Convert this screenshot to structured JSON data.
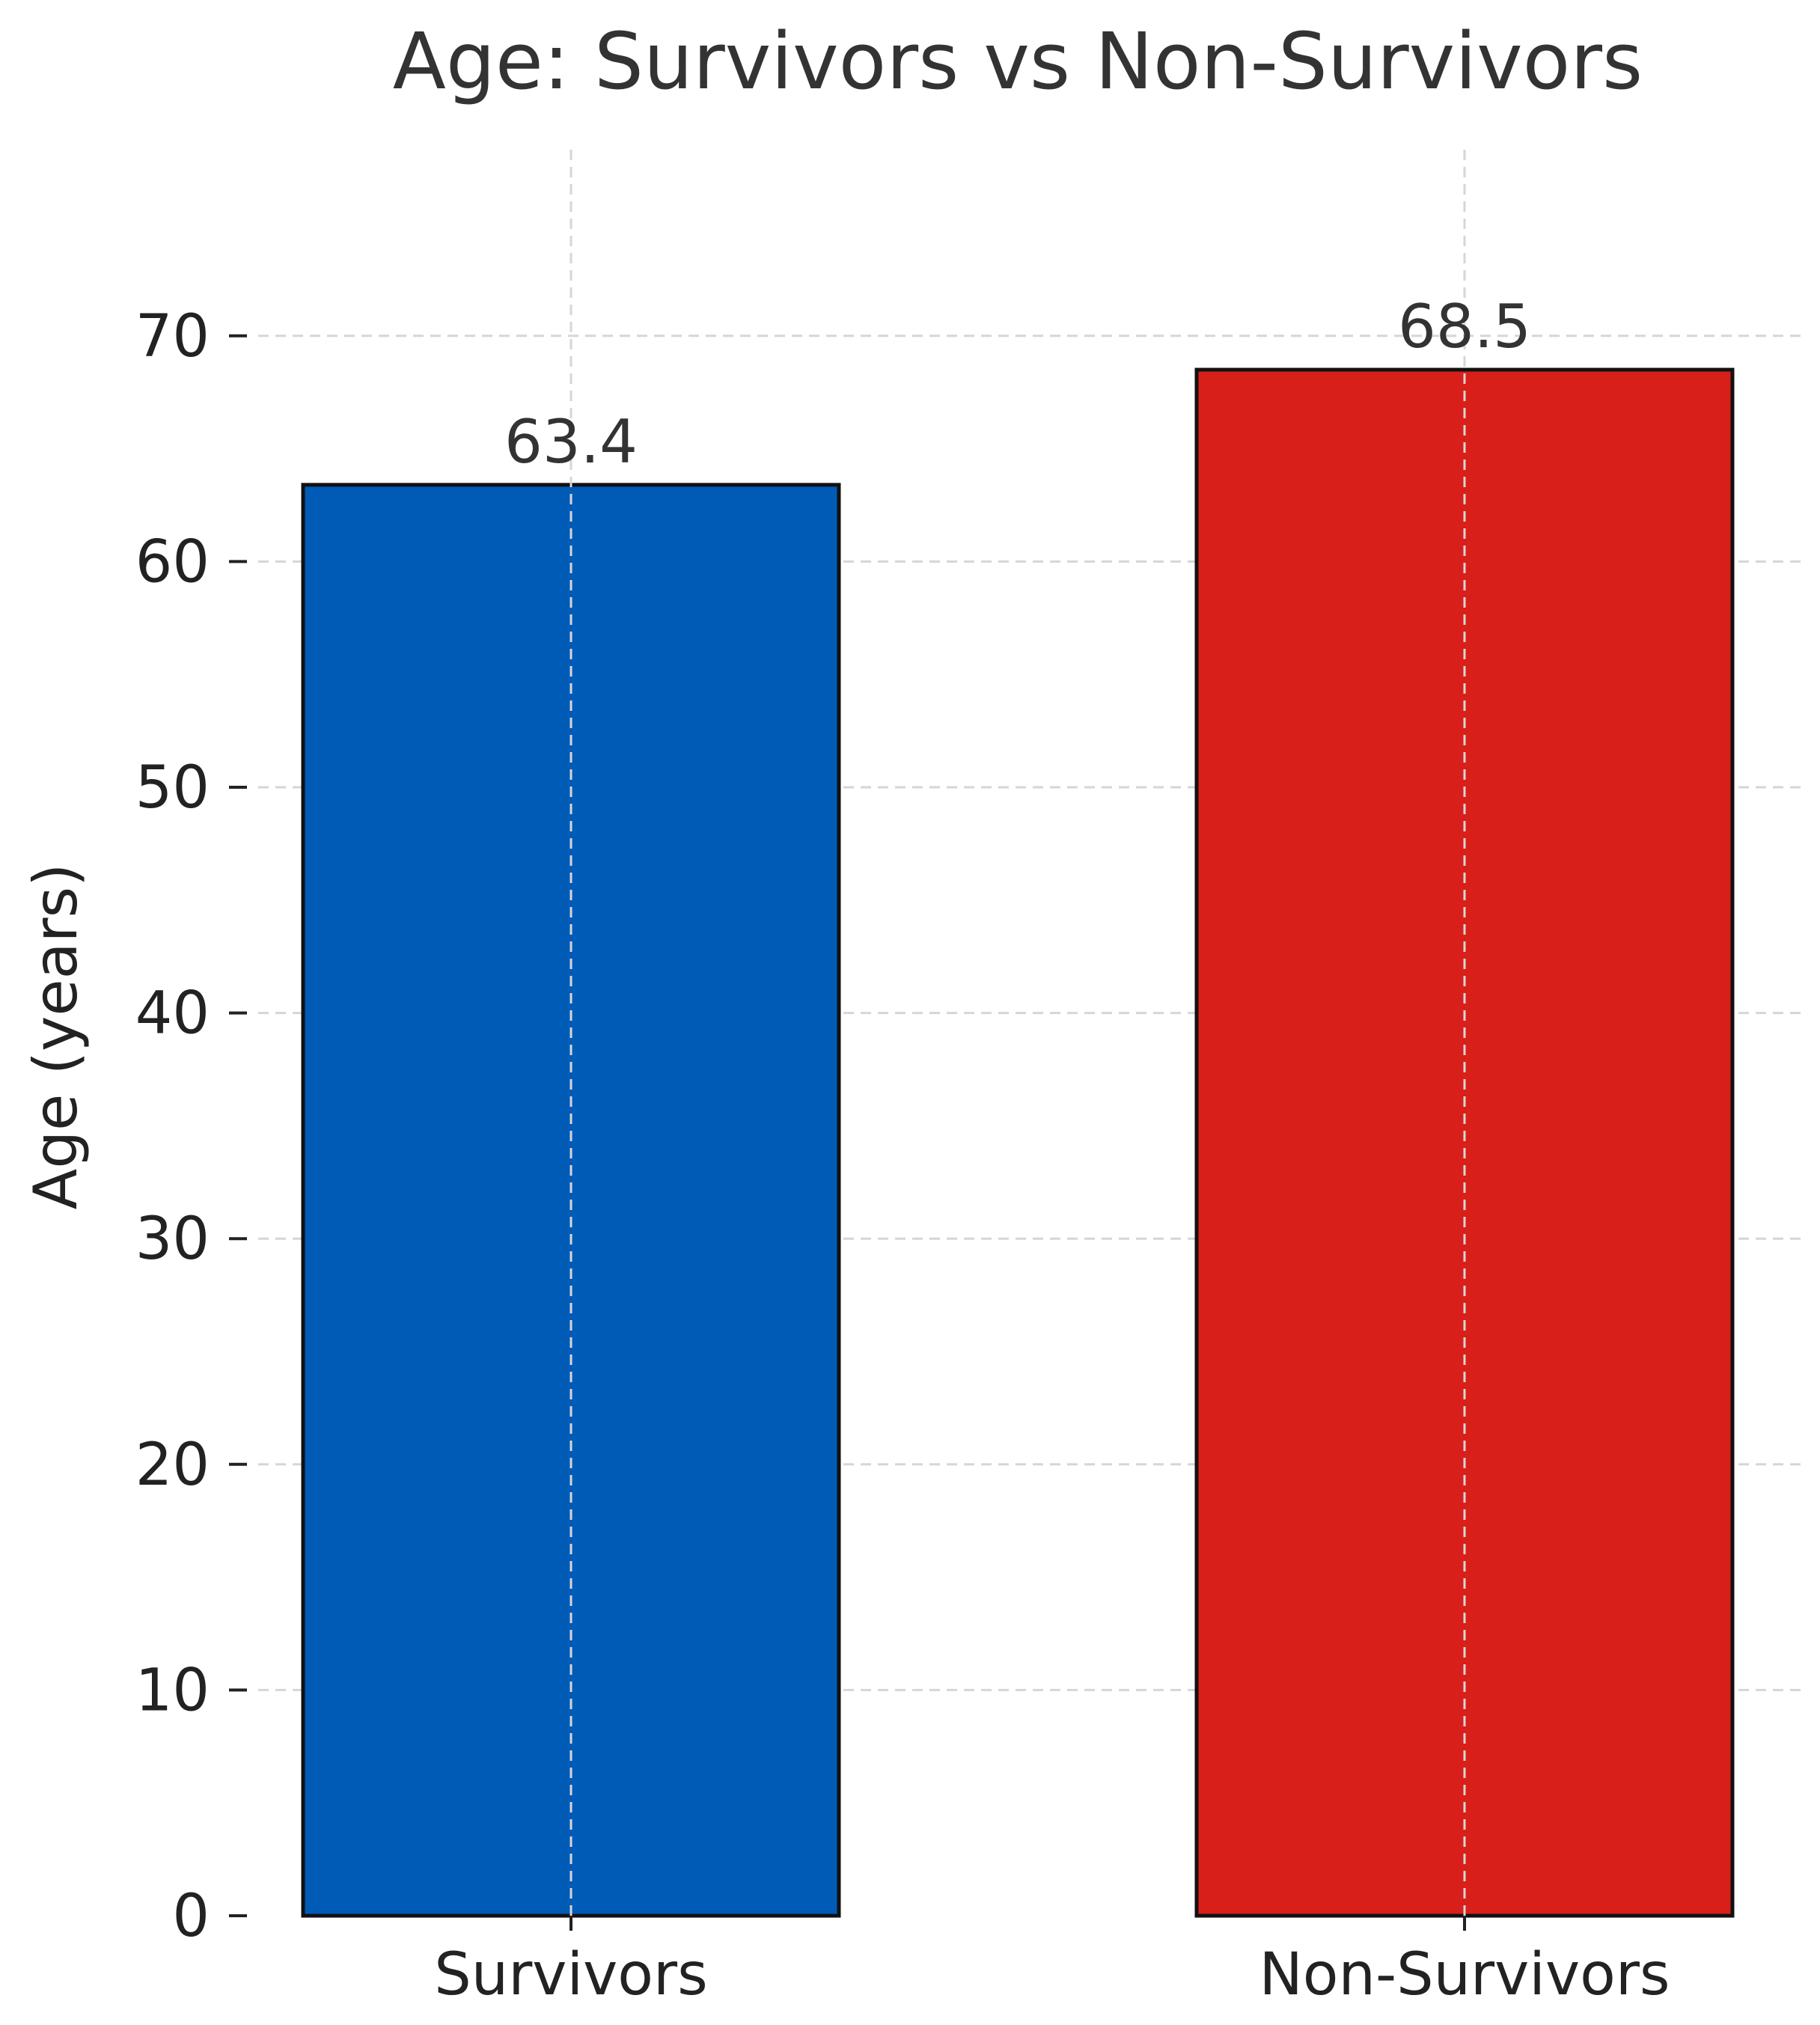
{
  "chart_data": {
    "type": "bar",
    "title": "Age: Survivors vs Non-Survivors",
    "xlabel": "",
    "ylabel": "Age (years)",
    "categories": [
      "Survivors",
      "Non-Survivors"
    ],
    "values": [
      63.4,
      68.5
    ],
    "value_labels": [
      "63.4",
      "68.5"
    ],
    "colors": [
      "#005BB7",
      "#D91F19"
    ],
    "ylim": [
      0,
      78
    ],
    "yticks": [
      0,
      10,
      20,
      30,
      40,
      50,
      60,
      70
    ],
    "grid": true,
    "legend": "none"
  }
}
